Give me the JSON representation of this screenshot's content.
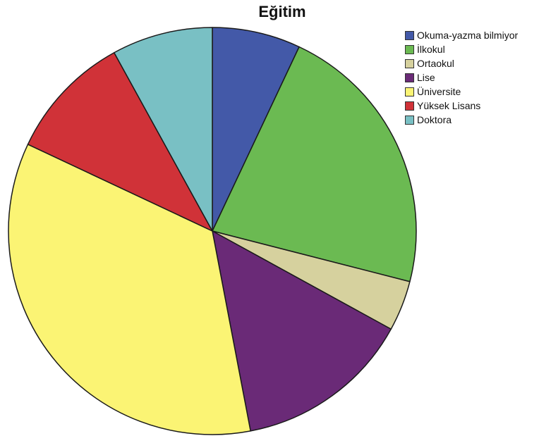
{
  "chart_data": {
    "type": "pie",
    "title": "Eğitim",
    "start_angle": "12 o'clock",
    "direction": "clockwise",
    "legend_position": "top-right",
    "slices": [
      {
        "label": "Okuma-yazma bilmiyor",
        "value": 7,
        "color": "#4359A8"
      },
      {
        "label": "İlkokul",
        "value": 22,
        "color": "#6BBA52"
      },
      {
        "label": "Ortaokul",
        "value": 4,
        "color": "#D6D19E"
      },
      {
        "label": "Lise",
        "value": 14,
        "color": "#6A2A77"
      },
      {
        "label": "Üniversite",
        "value": 35,
        "color": "#FBF474"
      },
      {
        "label": "Yüksek Lisans",
        "value": 10,
        "color": "#D03238"
      },
      {
        "label": "Doktora",
        "value": 8,
        "color": "#79C0C4"
      }
    ]
  }
}
